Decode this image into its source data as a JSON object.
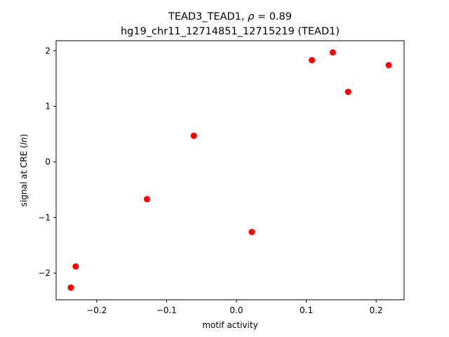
{
  "chart_data": {
    "type": "scatter",
    "title_line1_prefix": "TEAD3_TEAD1, ",
    "title_line1_rho": "ρ",
    "title_line1_suffix": " = 0.89",
    "title_line2": "hg19_chr11_12714851_12715219 (TEAD1)",
    "xlabel": "motif activity",
    "ylabel_prefix": "signal at CRE (",
    "ylabel_italic": "ln",
    "ylabel_suffix": ")",
    "xlim": [
      -0.258,
      0.24
    ],
    "ylim": [
      -2.48,
      2.18
    ],
    "xticks": [
      {
        "value": -0.2,
        "label": "−0.2"
      },
      {
        "value": -0.1,
        "label": "−0.1"
      },
      {
        "value": 0.0,
        "label": "0.0"
      },
      {
        "value": 0.1,
        "label": "0.1"
      },
      {
        "value": 0.2,
        "label": "0.2"
      }
    ],
    "yticks": [
      {
        "value": -2,
        "label": "−2"
      },
      {
        "value": -1,
        "label": "−1"
      },
      {
        "value": 0,
        "label": "0"
      },
      {
        "value": 1,
        "label": "1"
      },
      {
        "value": 2,
        "label": "2"
      }
    ],
    "marker_color": "#ff0000",
    "points": [
      {
        "x": -0.237,
        "y": -2.26
      },
      {
        "x": -0.23,
        "y": -1.88
      },
      {
        "x": -0.128,
        "y": -0.67
      },
      {
        "x": -0.061,
        "y": 0.47
      },
      {
        "x": 0.022,
        "y": -1.26
      },
      {
        "x": 0.108,
        "y": 1.83
      },
      {
        "x": 0.138,
        "y": 1.97
      },
      {
        "x": 0.16,
        "y": 1.26
      },
      {
        "x": 0.218,
        "y": 1.74
      }
    ],
    "grid": false,
    "legend": "none"
  }
}
